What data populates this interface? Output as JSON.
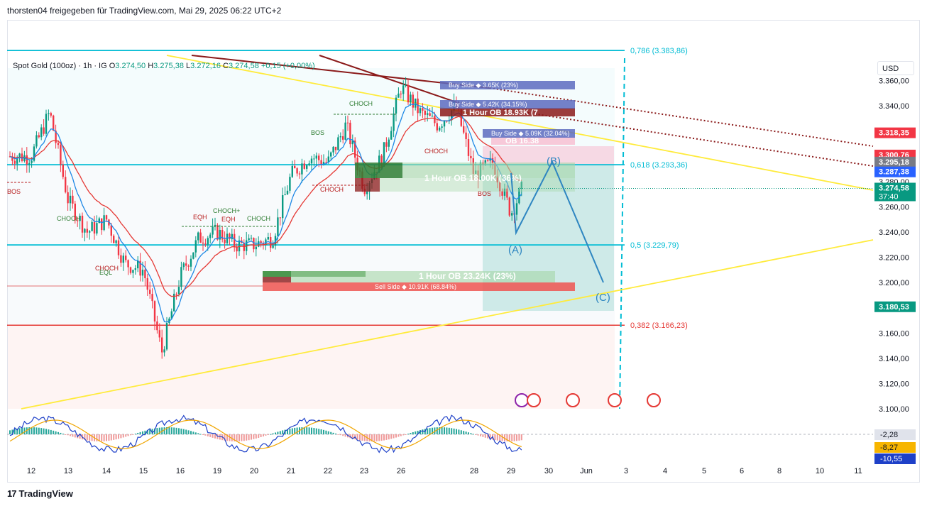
{
  "header": {
    "publisher": "thorsten04 freigegeben für TradingView.com, Mai 29, 2025 06:22 UTC+2"
  },
  "symbol": {
    "name": "Spot Gold (100oz) · 1h · IG",
    "o_label": "O",
    "o": "3.274,50",
    "h_label": "H",
    "h": "3.275,38",
    "l_label": "L",
    "l": "3.272,16",
    "c_label": "C",
    "c": "3.274,58",
    "chg": "+0,15 (+0,00%)"
  },
  "currency": "USD",
  "footer": {
    "brand": "TradingView",
    "logo": "tradingview-logo-icon"
  },
  "colors": {
    "up": "#089981",
    "down": "#f23645",
    "cyan": "#00bcd4",
    "yellow": "#ffeb3b",
    "wave": "#2e86c1",
    "ema": "#e53935",
    "ema_fast": "#1e88e5"
  },
  "chart_data": {
    "type": "candlestick",
    "yrange": [
      3100,
      3380
    ],
    "y_ticks": [
      "3.360,00",
      "3.340,00",
      "3.320,00",
      "3.300,00",
      "3.280,00",
      "3.260,00",
      "3.240,00",
      "3.220,00",
      "3.200,00",
      "3.180,00",
      "3.160,00",
      "3.140,00",
      "3.120,00",
      "3.100,00"
    ],
    "x_ticks": [
      "12",
      "13",
      "14",
      "15",
      "16",
      "19",
      "20",
      "21",
      "22",
      "23",
      "26",
      "28",
      "29",
      "30",
      "Jun",
      "3",
      "4",
      "5",
      "6",
      "8",
      "10",
      "11"
    ],
    "close_path": [
      [
        "12",
        3300
      ],
      [
        "12.5",
        3335
      ],
      [
        "13",
        3265
      ],
      [
        "13.5",
        3240
      ],
      [
        "14",
        3250
      ],
      [
        "14.5",
        3215
      ],
      [
        "15",
        3210
      ],
      [
        "15.5",
        3145
      ],
      [
        "16",
        3205
      ],
      [
        "16.5",
        3235
      ],
      [
        "19",
        3240
      ],
      [
        "19.5",
        3230
      ],
      [
        "20",
        3230
      ],
      [
        "20.5",
        3235
      ],
      [
        "21",
        3285
      ],
      [
        "21.5",
        3300
      ],
      [
        "22",
        3295
      ],
      [
        "22.5",
        3325
      ],
      [
        "23",
        3275
      ],
      [
        "23.5",
        3300
      ],
      [
        "26",
        3355
      ],
      [
        "26.5",
        3335
      ],
      [
        "27",
        3325
      ],
      [
        "27.5",
        3340
      ],
      [
        "28",
        3285
      ],
      [
        "28.5",
        3295
      ],
      [
        "29",
        3255
      ],
      [
        "29.3",
        3274.58
      ]
    ],
    "fib_levels": [
      {
        "label": "0,786 (3.383,86)",
        "value": 3383.86
      },
      {
        "label": "0,618 (3.293,36)",
        "value": 3293.36
      },
      {
        "label": "0,5 (3.229,79)",
        "value": 3229.79
      },
      {
        "label": "0,382 (3.166,23)",
        "value": 3166.23
      }
    ],
    "price_labels": [
      {
        "text": "3.318,35",
        "value": 3318.35,
        "color": "#f23645"
      },
      {
        "text": "3.300,76",
        "value": 3300.76,
        "color": "#f23645"
      },
      {
        "text": "3.295,18",
        "value": 3295.18,
        "color": "#787b86"
      },
      {
        "text": "3.287,38",
        "value": 3287.38,
        "color": "#2962ff"
      },
      {
        "text": "3.274,58",
        "value": 3274.58,
        "color": "#089981",
        "sub": "37:40"
      },
      {
        "text": "3.180,53",
        "value": 3180.53,
        "color": "#089981"
      }
    ],
    "structure_labels": [
      {
        "text": "BOS",
        "color": "#b71c1c"
      },
      {
        "text": "CHOCH",
        "color": "#2e7d32"
      },
      {
        "text": "CHOCH",
        "color": "#b71c1c"
      },
      {
        "text": "EQL",
        "color": "#2e7d32"
      },
      {
        "text": "EQH",
        "color": "#b71c1c"
      },
      {
        "text": "EQH",
        "color": "#b71c1c"
      },
      {
        "text": "CHOCH+",
        "color": "#2e7d32"
      },
      {
        "text": "CHOCH",
        "color": "#2e7d32"
      },
      {
        "text": "BOS",
        "color": "#2e7d32"
      },
      {
        "text": "CHOCH",
        "color": "#2e7d32"
      },
      {
        "text": "CHOCH",
        "color": "#b71c1c"
      },
      {
        "text": "CHOCH",
        "color": "#b71c1c"
      },
      {
        "text": "BOS",
        "color": "#b71c1c"
      }
    ],
    "order_blocks": [
      {
        "text": "1 Hour OB 18.93K (7",
        "kind": "bear"
      },
      {
        "text": "OB 16.38",
        "kind": "bear"
      },
      {
        "text": "1 Hour OB 18.00K (36%)",
        "kind": "bull"
      },
      {
        "text": "1 Hour OB 23.24K (23%)",
        "kind": "bull"
      }
    ],
    "liquidity": [
      {
        "text": "Buy Side",
        "amount": "3.65K (23%)"
      },
      {
        "text": "Buy Side",
        "amount": "5.42K (34.15%)"
      },
      {
        "text": "Buy Side",
        "amount": "5.09K (32.04%)"
      },
      {
        "text": "Sell Side",
        "amount": "10.91K (68.84%)"
      }
    ],
    "wave_labels": [
      "(A)",
      "(B)",
      "(C)"
    ],
    "oscillator": {
      "labels": [
        "-2,28",
        "-8,27",
        "-10,55"
      ]
    }
  }
}
